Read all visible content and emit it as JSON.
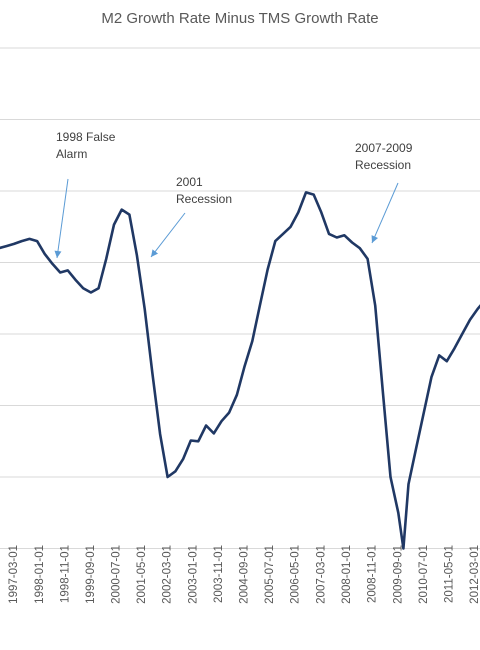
{
  "chart_data": {
    "type": "line",
    "title": "M2 Growth Rate Minus TMS Growth Rate",
    "xlabel": "",
    "ylabel": "",
    "x_range": [
      "1996-06-01",
      "2012-09-01"
    ],
    "y_range_gridlines": [
      -30,
      -20,
      -10,
      0,
      10,
      20,
      30,
      40
    ],
    "grid": "horizontal",
    "legend": "none",
    "line_color": "#203864",
    "x_tick_labels": [
      "1997-03-01",
      "1998-01-01",
      "1998-11-01",
      "1999-09-01",
      "2000-07-01",
      "2001-05-01",
      "2002-03-01",
      "2003-01-01",
      "2003-11-01",
      "2004-09-01",
      "2005-07-01",
      "2006-05-01",
      "2007-03-01",
      "2008-01-01",
      "2008-11-01",
      "2009-09-01",
      "2010-07-01",
      "2011-05-01",
      "2012-03-01"
    ],
    "series": [
      {
        "x": [
          "1996-06-01",
          "1996-09-01",
          "1996-12-01",
          "1997-03-01",
          "1997-06-01",
          "1997-09-01",
          "1997-12-01",
          "1998-03-01",
          "1998-06-01",
          "1998-09-01",
          "1998-12-01",
          "1999-03-01",
          "1999-06-01",
          "1999-09-01",
          "1999-12-01",
          "2000-03-01",
          "2000-06-01",
          "2000-09-01",
          "2000-12-01",
          "2001-03-01",
          "2001-06-01",
          "2001-09-01",
          "2001-12-01",
          "2002-03-01",
          "2002-06-01",
          "2002-09-01",
          "2002-12-01",
          "2003-03-01",
          "2003-06-01",
          "2003-09-01",
          "2003-12-01",
          "2004-03-01",
          "2004-06-01",
          "2004-09-01",
          "2004-12-01",
          "2005-03-01",
          "2005-06-01",
          "2005-09-01",
          "2005-12-01",
          "2006-03-01",
          "2006-06-01",
          "2006-09-01",
          "2006-12-01",
          "2007-03-01",
          "2007-06-01",
          "2007-09-01",
          "2007-12-01",
          "2008-03-01",
          "2008-06-01",
          "2008-09-01",
          "2008-12-01",
          "2009-03-01",
          "2009-06-01",
          "2009-09-01",
          "2009-11-01",
          "2010-01-01",
          "2010-04-01",
          "2010-07-01",
          "2010-10-01",
          "2011-01-01",
          "2011-04-01",
          "2011-07-01",
          "2011-10-01",
          "2012-01-01",
          "2012-04-01",
          "2012-07-01",
          "2012-09-01"
        ],
        "values": [
          11.5,
          12.0,
          12.3,
          12.6,
          13.0,
          13.3,
          13.0,
          11.2,
          9.8,
          8.6,
          8.9,
          7.6,
          6.4,
          5.8,
          6.4,
          10.5,
          15.3,
          17.4,
          16.7,
          11.0,
          3.5,
          -5.5,
          -14.0,
          -20.0,
          -19.2,
          -17.5,
          -14.9,
          -15.0,
          -12.8,
          -13.9,
          -12.2,
          -11.0,
          -8.5,
          -4.5,
          -1.0,
          4.0,
          9.0,
          13.0,
          14.0,
          15.0,
          17.0,
          19.8,
          19.5,
          17.0,
          14.0,
          13.5,
          13.8,
          12.8,
          12.0,
          10.5,
          4.0,
          -8.0,
          -20.0,
          -25.0,
          -30.0,
          -21.0,
          -16.0,
          -11.0,
          -6.0,
          -3.0,
          -3.8,
          -2.0,
          0.0,
          2.0,
          3.5,
          4.8,
          5.0
        ]
      }
    ],
    "annotations": [
      {
        "lines": [
          "1998 False",
          "Alarm"
        ],
        "date": "1998-02-01",
        "value": 11.0
      },
      {
        "lines": [
          "2001",
          "Recession"
        ],
        "date": "2001-05-01",
        "value": 11.5
      },
      {
        "lines": [
          "2007-2009",
          "Recession"
        ],
        "date": "2008-11-01",
        "value": 12.5
      }
    ]
  }
}
